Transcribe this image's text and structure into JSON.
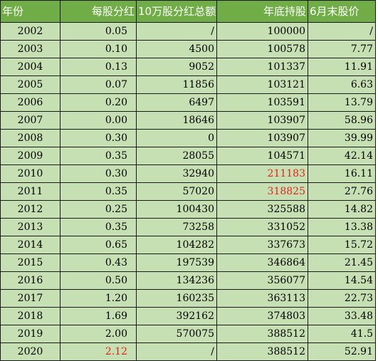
{
  "headers": [
    "年份",
    "每股分红",
    "10万股分红总额",
    "年底持股",
    "6月末股价"
  ],
  "highlight_color": "#e0251b",
  "rows": [
    {
      "year": "2002",
      "div": "0.05",
      "total": "/",
      "shares": "100000",
      "price": "/"
    },
    {
      "year": "2003",
      "div": "0.10",
      "total": "4500",
      "shares": "100578",
      "price": "7.77"
    },
    {
      "year": "2004",
      "div": "0.13",
      "total": "9052",
      "shares": "101337",
      "price": "11.91"
    },
    {
      "year": "2005",
      "div": "0.07",
      "total": "11856",
      "shares": "103121",
      "price": "6.63"
    },
    {
      "year": "2006",
      "div": "0.20",
      "total": "6497",
      "shares": "103591",
      "price": "13.79"
    },
    {
      "year": "2007",
      "div": "0.00",
      "total": "18646",
      "shares": "103907",
      "price": "58.96"
    },
    {
      "year": "2008",
      "div": "0.30",
      "total": "0",
      "shares": "103907",
      "price": "39.99"
    },
    {
      "year": "2009",
      "div": "0.35",
      "total": "28055",
      "shares": "104571",
      "price": "42.14"
    },
    {
      "year": "2010",
      "div": "0.30",
      "total": "32940",
      "shares": "211183",
      "price": "16.11",
      "red": [
        "shares"
      ]
    },
    {
      "year": "2011",
      "div": "0.35",
      "total": "57020",
      "shares": "318825",
      "price": "27.76",
      "red": [
        "shares"
      ]
    },
    {
      "year": "2012",
      "div": "0.25",
      "total": "100430",
      "shares": "325588",
      "price": "14.82"
    },
    {
      "year": "2013",
      "div": "0.35",
      "total": "73258",
      "shares": "331052",
      "price": "13.38"
    },
    {
      "year": "2014",
      "div": "0.65",
      "total": "104282",
      "shares": "337673",
      "price": "15.72"
    },
    {
      "year": "2015",
      "div": "0.43",
      "total": "197539",
      "shares": "346864",
      "price": "21.45"
    },
    {
      "year": "2016",
      "div": "0.50",
      "total": "134236",
      "shares": "356077",
      "price": "14.54"
    },
    {
      "year": "2017",
      "div": "1.20",
      "total": "160235",
      "shares": "363113",
      "price": "22.73"
    },
    {
      "year": "2018",
      "div": "1.69",
      "total": "392162",
      "shares": "374803",
      "price": "33.48"
    },
    {
      "year": "2019",
      "div": "2.00",
      "total": "570075",
      "shares": "388512",
      "price": "41.5"
    },
    {
      "year": "2020",
      "div": "2.12",
      "total": "/",
      "shares": "388512",
      "price": "52.91",
      "red": [
        "div"
      ]
    }
  ]
}
